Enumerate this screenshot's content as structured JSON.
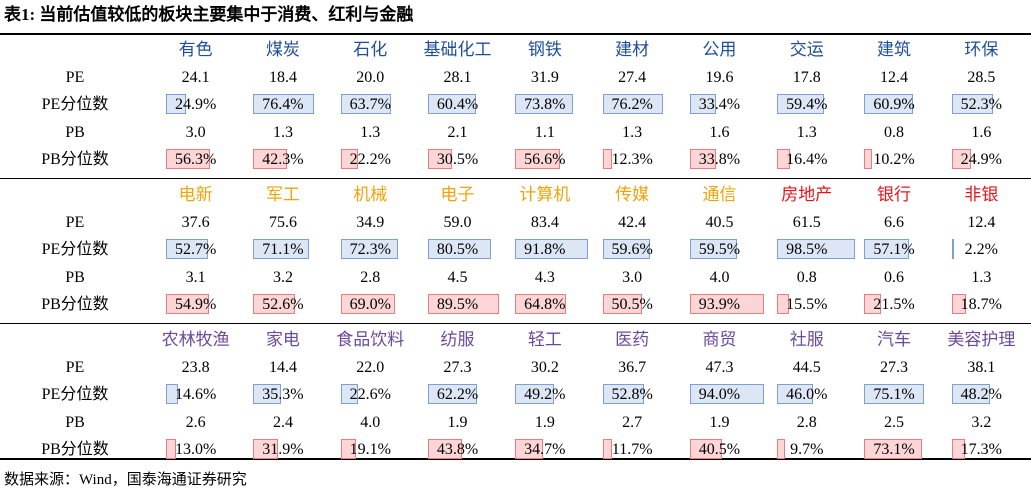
{
  "title": "表1: 当前估值较低的板块主要集中于消费、红利与金融",
  "row_labels": [
    "PE",
    "PE分位数",
    "PB",
    "PB分位数"
  ],
  "pct_bar_lim": [
    0,
    100
  ],
  "pe_bar_color": {
    "fill": "#dce6f5",
    "stroke": "#7d9fd3"
  },
  "pb_bar_color": {
    "fill": "#fcd6d6",
    "stroke": "#ee7b7b"
  },
  "groups": [
    {
      "categories": [
        "有色",
        "煤炭",
        "石化",
        "基础化工",
        "钢铁",
        "建材",
        "公用",
        "交运",
        "建筑",
        "环保"
      ],
      "category_colors": [
        "#1f4e99",
        "#1f4e99",
        "#1f4e99",
        "#1f4e99",
        "#1f4e99",
        "#1f4e99",
        "#1f4e99",
        "#1f4e99",
        "#1f4e99",
        "#1f4e99"
      ],
      "pe": [
        "24.1",
        "18.4",
        "20.0",
        "28.1",
        "31.9",
        "27.4",
        "19.6",
        "17.8",
        "12.4",
        "28.5"
      ],
      "pe_pct": [
        24.9,
        76.4,
        63.7,
        60.4,
        73.8,
        76.2,
        33.4,
        59.4,
        60.9,
        52.3
      ],
      "pe_pct_labels": [
        "24.9%",
        "76.4%",
        "63.7%",
        "60.4%",
        "73.8%",
        "76.2%",
        "33.4%",
        "59.4%",
        "60.9%",
        "52.3%"
      ],
      "pb": [
        "3.0",
        "1.3",
        "1.3",
        "2.1",
        "1.1",
        "1.3",
        "1.6",
        "1.3",
        "0.8",
        "1.6"
      ],
      "pb_pct": [
        56.3,
        42.3,
        22.2,
        30.5,
        56.6,
        12.3,
        33.8,
        16.4,
        10.2,
        24.9
      ],
      "pb_pct_labels": [
        "56.3%",
        "42.3%",
        "22.2%",
        "30.5%",
        "56.6%",
        "12.3%",
        "33.8%",
        "16.4%",
        "10.2%",
        "24.9%"
      ]
    },
    {
      "categories": [
        "电新",
        "军工",
        "机械",
        "电子",
        "计算机",
        "传媒",
        "通信",
        "房地产",
        "银行",
        "非银"
      ],
      "category_colors": [
        "#f0a30a",
        "#f0a30a",
        "#f0a30a",
        "#f0a30a",
        "#f0a30a",
        "#f0a30a",
        "#f0a30a",
        "#e8141b",
        "#e8141b",
        "#e8141b"
      ],
      "pe": [
        "37.6",
        "75.6",
        "34.9",
        "59.0",
        "83.4",
        "42.4",
        "40.5",
        "61.5",
        "6.6",
        "12.4"
      ],
      "pe_pct": [
        52.7,
        71.1,
        72.3,
        80.5,
        91.8,
        59.6,
        59.5,
        98.5,
        57.1,
        2.2
      ],
      "pe_pct_labels": [
        "52.7%",
        "71.1%",
        "72.3%",
        "80.5%",
        "91.8%",
        "59.6%",
        "59.5%",
        "98.5%",
        "57.1%",
        "2.2%"
      ],
      "pb": [
        "3.1",
        "3.2",
        "2.8",
        "4.5",
        "4.3",
        "3.0",
        "4.0",
        "0.8",
        "0.6",
        "1.3"
      ],
      "pb_pct": [
        54.9,
        52.6,
        69.0,
        89.5,
        64.8,
        50.5,
        93.9,
        15.5,
        21.5,
        18.7
      ],
      "pb_pct_labels": [
        "54.9%",
        "52.6%",
        "69.0%",
        "89.5%",
        "64.8%",
        "50.5%",
        "93.9%",
        "15.5%",
        "21.5%",
        "18.7%"
      ]
    },
    {
      "categories": [
        "农林牧渔",
        "家电",
        "食品饮料",
        "纺服",
        "轻工",
        "医药",
        "商贸",
        "社服",
        "汽车",
        "美容护理"
      ],
      "category_colors": [
        "#6a4a9c",
        "#6a4a9c",
        "#6a4a9c",
        "#6a4a9c",
        "#6a4a9c",
        "#6a4a9c",
        "#6a4a9c",
        "#6a4a9c",
        "#6a4a9c",
        "#6a4a9c"
      ],
      "pe": [
        "23.8",
        "14.4",
        "22.0",
        "27.3",
        "30.2",
        "36.7",
        "47.3",
        "44.5",
        "27.3",
        "38.1"
      ],
      "pe_pct": [
        14.6,
        35.3,
        22.6,
        62.2,
        49.2,
        52.8,
        94.0,
        46.0,
        75.1,
        48.2
      ],
      "pe_pct_labels": [
        "14.6%",
        "35.3%",
        "22.6%",
        "62.2%",
        "49.2%",
        "52.8%",
        "94.0%",
        "46.0%",
        "75.1%",
        "48.2%"
      ],
      "pb": [
        "2.6",
        "2.4",
        "4.0",
        "1.9",
        "1.9",
        "2.7",
        "1.9",
        "2.8",
        "2.5",
        "3.2"
      ],
      "pb_pct": [
        13.0,
        31.9,
        19.1,
        43.8,
        34.7,
        11.7,
        40.5,
        9.7,
        73.1,
        17.3
      ],
      "pb_pct_labels": [
        "13.0%",
        "31.9%",
        "19.1%",
        "43.8%",
        "34.7%",
        "11.7%",
        "40.5%",
        "9.7%",
        "73.1%",
        "17.3%"
      ]
    }
  ],
  "source": "数据来源：Wind，国泰海通证券研究"
}
